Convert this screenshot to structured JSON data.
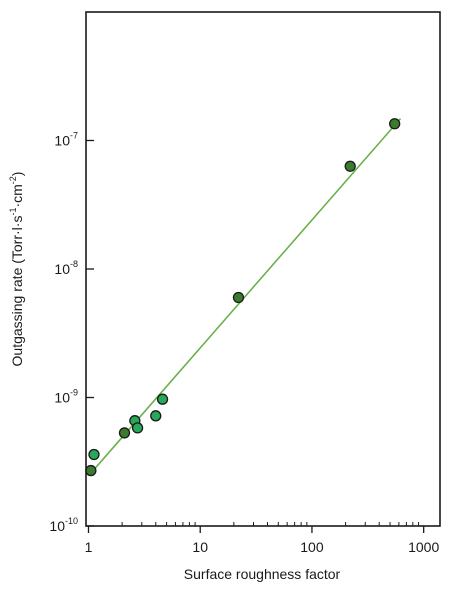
{
  "chart_data": {
    "type": "scatter",
    "title": "",
    "xlabel": "Surface roughness factor",
    "ylabel": {
      "main": "Outgassing rate (Torr·l·s",
      "exp1": "-1",
      "mid": "·cm",
      "exp2": "-2",
      "end": ")"
    },
    "x_scale": "log",
    "y_scale": "log",
    "xlim": [
      0.95,
      1400
    ],
    "ylim": [
      1e-10,
      1e-06
    ],
    "x_ticks": [
      {
        "value": 1,
        "label": "1"
      },
      {
        "value": 10,
        "label": "10"
      },
      {
        "value": 100,
        "label": "100"
      },
      {
        "value": 1000,
        "label": "1000"
      }
    ],
    "y_ticks": [
      {
        "value": 1e-10,
        "base": "10",
        "exp": "-10"
      },
      {
        "value": 1e-09,
        "base": "10",
        "exp": "-9"
      },
      {
        "value": 1e-08,
        "base": "10",
        "exp": "-8"
      },
      {
        "value": 1e-07,
        "base": "10",
        "exp": "-7"
      }
    ],
    "grid": false,
    "series": [
      {
        "marker_fill": "#3c7a2e",
        "points": [
          {
            "x": 1.05,
            "y": 2.7e-10
          },
          {
            "x": 2.1,
            "y": 5.3e-10
          },
          {
            "x": 22,
            "y": 6e-09
          },
          {
            "x": 220,
            "y": 6.3e-08
          },
          {
            "x": 550,
            "y": 1.35e-07
          }
        ]
      },
      {
        "marker_fill": "#27a85a",
        "points": [
          {
            "x": 1.12,
            "y": 3.6e-10
          },
          {
            "x": 2.6,
            "y": 6.6e-10
          },
          {
            "x": 2.75,
            "y": 5.8e-10
          },
          {
            "x": 4.0,
            "y": 7.2e-10
          },
          {
            "x": 4.6,
            "y": 9.7e-10
          }
        ]
      }
    ],
    "fit_line": {
      "color": "#6ab04c",
      "points": [
        {
          "x": 1.1,
          "y": 2.7e-10
        },
        {
          "x": 620,
          "y": 1.48e-07
        }
      ]
    },
    "colors": {
      "axis": "#1a1a1a",
      "marker_stroke": "#1a1a1a"
    }
  }
}
